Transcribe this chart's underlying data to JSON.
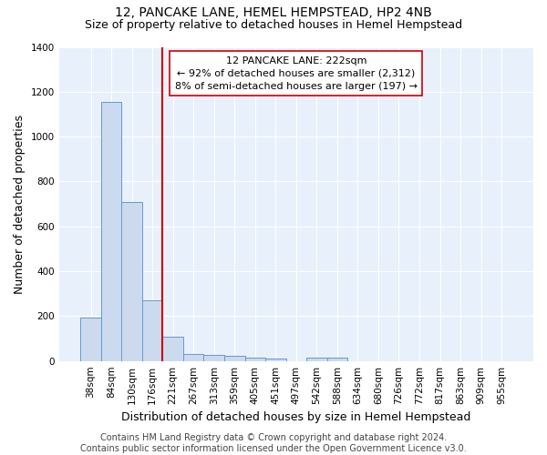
{
  "title1": "12, PANCAKE LANE, HEMEL HEMPSTEAD, HP2 4NB",
  "title2": "Size of property relative to detached houses in Hemel Hempstead",
  "xlabel": "Distribution of detached houses by size in Hemel Hempstead",
  "ylabel": "Number of detached properties",
  "footnote": "Contains HM Land Registry data © Crown copyright and database right 2024.\nContains public sector information licensed under the Open Government Licence v3.0.",
  "bin_labels": [
    "38sqm",
    "84sqm",
    "130sqm",
    "176sqm",
    "221sqm",
    "267sqm",
    "313sqm",
    "359sqm",
    "405sqm",
    "451sqm",
    "497sqm",
    "542sqm",
    "588sqm",
    "634sqm",
    "680sqm",
    "726sqm",
    "772sqm",
    "817sqm",
    "863sqm",
    "909sqm",
    "955sqm"
  ],
  "bar_heights": [
    192,
    1155,
    710,
    270,
    107,
    32,
    27,
    23,
    13,
    12,
    0,
    13,
    16,
    0,
    0,
    0,
    0,
    0,
    0,
    0,
    0
  ],
  "bar_color": "#ccdaf0",
  "bar_edge_color": "#6699cc",
  "annotation_text": "  12 PANCAKE LANE: 222sqm  \n← 92% of detached houses are smaller (2,312)\n8% of semi-detached houses are larger (197) →",
  "vline_x": 3.5,
  "vline_color": "#cc0000",
  "annotation_box_color": "#cc0000",
  "ylim": [
    0,
    1400
  ],
  "yticks": [
    0,
    200,
    400,
    600,
    800,
    1000,
    1200,
    1400
  ],
  "bg_color": "#e8f0fb",
  "grid_color": "#ffffff",
  "title1_fontsize": 10,
  "title2_fontsize": 9,
  "annotation_fontsize": 8,
  "xlabel_fontsize": 9,
  "ylabel_fontsize": 9,
  "footnote_fontsize": 7,
  "tick_fontsize": 7.5
}
